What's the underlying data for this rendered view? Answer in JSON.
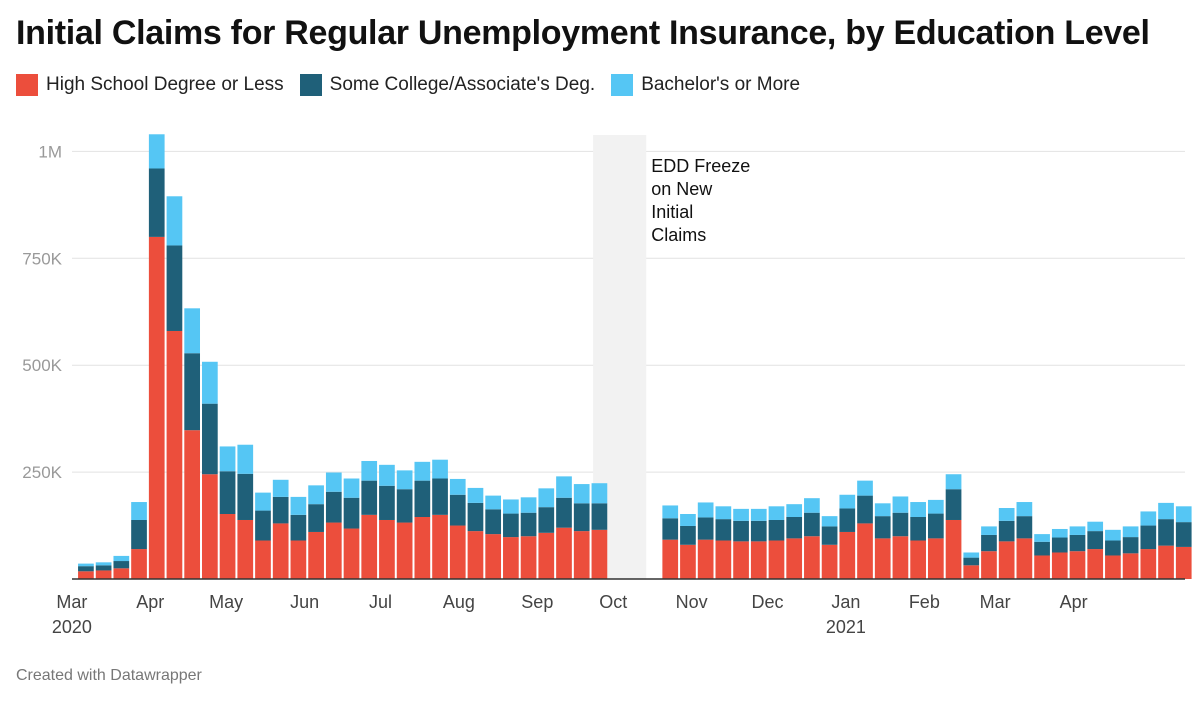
{
  "chart_data": {
    "type": "bar",
    "stacked": true,
    "title": "Initial Claims for Regular Unemployment Insurance, by Education Level",
    "series": [
      {
        "name": "High School Degree or Less",
        "color": "#ec4e3c",
        "values": [
          18000,
          20000,
          25000,
          70000,
          800000,
          580000,
          348000,
          245000,
          152000,
          138000,
          90000,
          130000,
          90000,
          110000,
          132000,
          118000,
          150000,
          138000,
          132000,
          145000,
          150000,
          125000,
          112000,
          105000,
          98000,
          100000,
          108000,
          120000,
          112000,
          115000,
          92000,
          80000,
          92000,
          90000,
          88000,
          88000,
          90000,
          95000,
          100000,
          80000,
          110000,
          130000,
          95000,
          100000,
          90000,
          95000,
          138000,
          32000,
          65000,
          88000,
          95000,
          55000,
          62000,
          65000,
          70000,
          55000,
          60000,
          70000,
          78000,
          75000
        ]
      },
      {
        "name": "Some College/Associate's Deg.",
        "color": "#1f6079",
        "values": [
          12000,
          12000,
          17000,
          68000,
          160000,
          200000,
          180000,
          165000,
          100000,
          108000,
          70000,
          62000,
          60000,
          65000,
          72000,
          72000,
          80000,
          80000,
          78000,
          85000,
          85000,
          72000,
          66000,
          58000,
          55000,
          55000,
          60000,
          70000,
          65000,
          62000,
          50000,
          44000,
          52000,
          50000,
          48000,
          48000,
          48000,
          50000,
          55000,
          43000,
          55000,
          65000,
          52000,
          55000,
          55000,
          58000,
          72000,
          18000,
          38000,
          48000,
          52000,
          32000,
          35000,
          38000,
          42000,
          35000,
          38000,
          55000,
          62000,
          58000
        ]
      },
      {
        "name": "Bachelor's or More",
        "color": "#55c6f4",
        "values": [
          6000,
          7000,
          12000,
          42000,
          80000,
          115000,
          105000,
          98000,
          58000,
          68000,
          42000,
          40000,
          42000,
          44000,
          45000,
          45000,
          46000,
          49000,
          44000,
          44000,
          44000,
          37000,
          35000,
          32000,
          33000,
          36000,
          44000,
          50000,
          45000,
          47000,
          30000,
          28000,
          35000,
          30000,
          28000,
          28000,
          32000,
          30000,
          34000,
          24000,
          32000,
          35000,
          30000,
          38000,
          35000,
          32000,
          35000,
          12000,
          20000,
          30000,
          33000,
          18000,
          20000,
          20000,
          22000,
          25000,
          25000,
          33000,
          38000,
          37000
        ]
      }
    ],
    "x": [
      "2020-03-07",
      "2020-03-14",
      "2020-03-21",
      "2020-03-28",
      "2020-04-04",
      "2020-04-11",
      "2020-04-18",
      "2020-04-25",
      "2020-05-02",
      "2020-05-09",
      "2020-05-16",
      "2020-05-23",
      "2020-05-30",
      "2020-06-06",
      "2020-06-13",
      "2020-06-20",
      "2020-06-27",
      "2020-07-04",
      "2020-07-11",
      "2020-07-18",
      "2020-07-25",
      "2020-08-01",
      "2020-08-08",
      "2020-08-15",
      "2020-08-22",
      "2020-08-29",
      "2020-09-05",
      "2020-09-12",
      "2020-09-19",
      "2020-09-26",
      "2020-10-24",
      "2020-10-31",
      "2020-11-07",
      "2020-11-14",
      "2020-11-21",
      "2020-11-28",
      "2020-12-05",
      "2020-12-12",
      "2020-12-19",
      "2020-12-26",
      "2021-01-02",
      "2021-01-09",
      "2021-01-16",
      "2021-01-23",
      "2021-01-30",
      "2021-02-06",
      "2021-02-13",
      "2021-02-20",
      "2021-02-27",
      "2021-03-06",
      "2021-03-13",
      "2021-03-20",
      "2021-03-27",
      "2021-04-03",
      "2021-04-10",
      "2021-04-17",
      "2021-04-24",
      "2021-05-01",
      "2021-05-08",
      "2021-05-15"
    ],
    "ylim": [
      0,
      1050000
    ],
    "y_ticks": [
      {
        "value": 250000,
        "label": "250K"
      },
      {
        "value": 500000,
        "label": "500K"
      },
      {
        "value": 750000,
        "label": "750K"
      },
      {
        "value": 1000000,
        "label": "1M"
      }
    ],
    "x_ticks": [
      {
        "date": "2020-03-01",
        "label": "Mar",
        "sublabel": "2020"
      },
      {
        "date": "2020-04-01",
        "label": "Apr"
      },
      {
        "date": "2020-05-01",
        "label": "May"
      },
      {
        "date": "2020-06-01",
        "label": "Jun"
      },
      {
        "date": "2020-07-01",
        "label": "Jul"
      },
      {
        "date": "2020-08-01",
        "label": "Aug"
      },
      {
        "date": "2020-09-01",
        "label": "Sep"
      },
      {
        "date": "2020-10-01",
        "label": "Oct"
      },
      {
        "date": "2020-11-01",
        "label": "Nov"
      },
      {
        "date": "2020-12-01",
        "label": "Dec"
      },
      {
        "date": "2021-01-01",
        "label": "Jan",
        "sublabel": "2021"
      },
      {
        "date": "2021-02-01",
        "label": "Feb"
      },
      {
        "date": "2021-03-01",
        "label": "Mar"
      },
      {
        "date": "2021-04-01",
        "label": "Apr"
      }
    ],
    "annotation": {
      "lines": [
        "EDD Freeze",
        "on New",
        "Initial",
        "Claims"
      ],
      "start": "2020-09-27",
      "end": "2020-10-18"
    },
    "grid": true,
    "legend_position": "top-left"
  },
  "footer": "Created with Datawrapper"
}
